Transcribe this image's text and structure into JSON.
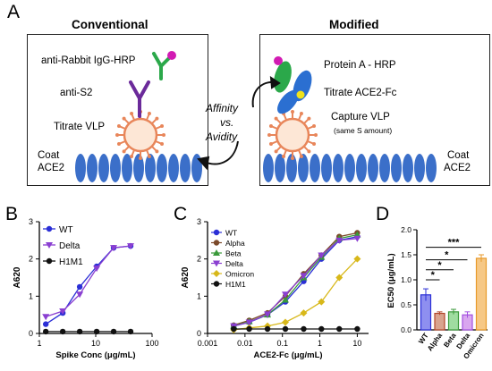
{
  "panels": {
    "a": "A",
    "b": "B",
    "c": "C",
    "d": "D"
  },
  "conventional": {
    "title": "Conventional",
    "detect_label": "anti-Rabbit IgG-HRP",
    "anti_s2_label": "anti-S2",
    "vlp_label": "Titrate VLP",
    "coat_label": "Coat",
    "coat_label2": "ACE2"
  },
  "modified": {
    "title": "Modified",
    "protein_a_label": "Protein A - HRP",
    "ace2fc_label": "Titrate ACE2-Fc",
    "capture_label": "Capture VLP",
    "capture_note": "(same S amount)",
    "coat_label": "Coat",
    "coat_label2": "ACE2"
  },
  "middle": {
    "affinity": "Affinity",
    "vs": "vs.",
    "avidity": "Avidity"
  },
  "colors": {
    "ace2_blue": "#3b6fc9",
    "wt": "#2b2fd6",
    "delta": "#8a3fd1",
    "h1m1": "#111111",
    "alpha": "#7b4a2a",
    "beta": "#3a9a3a",
    "omicron": "#d8b81a",
    "hrp_green": "#2ba84a",
    "hrp_magenta": "#d21bb3",
    "s2_purple": "#6b2a9a",
    "vlp_orange": "#e8865a"
  },
  "chart_data": [
    {
      "type": "scatter",
      "panel": "B",
      "xlabel": "Spike Conc (μg/mL)",
      "ylabel": "A620",
      "xscale": "log",
      "xlim": [
        1,
        100
      ],
      "ylim": [
        0,
        3
      ],
      "xticks": [
        "1",
        "10",
        "100"
      ],
      "yticks": [
        "0",
        "1",
        "2",
        "3"
      ],
      "legend": "top-left",
      "series": [
        {
          "name": "WT",
          "marker": "circle",
          "x": [
            1.3,
            2.6,
            5.2,
            10.4,
            20.8,
            41.6
          ],
          "y": [
            0.25,
            0.55,
            1.25,
            1.8,
            2.3,
            2.35
          ]
        },
        {
          "name": "Delta",
          "marker": "triangle-down",
          "x": [
            1.3,
            2.6,
            5.2,
            10.4,
            20.8,
            41.6
          ],
          "y": [
            0.45,
            0.6,
            1.05,
            1.75,
            2.3,
            2.35
          ]
        },
        {
          "name": "H1M1",
          "marker": "circle",
          "x": [
            1.3,
            2.6,
            5.2,
            10.4,
            20.8,
            41.6
          ],
          "y": [
            0.05,
            0.05,
            0.05,
            0.05,
            0.05,
            0.05
          ]
        }
      ]
    },
    {
      "type": "scatter",
      "panel": "C",
      "xlabel": "ACE2-Fc (μg/mL)",
      "ylabel": "A620",
      "xscale": "log",
      "xlim": [
        0.001,
        20
      ],
      "ylim": [
        0,
        3
      ],
      "xticks": [
        "0.001",
        "0.01",
        "0.1",
        "1",
        "10"
      ],
      "yticks": [
        "0",
        "1",
        "2",
        "3"
      ],
      "legend": "top-left",
      "series": [
        {
          "name": "WT",
          "marker": "circle",
          "x": [
            0.005,
            0.013,
            0.04,
            0.12,
            0.37,
            1.1,
            3.3,
            10
          ],
          "y": [
            0.2,
            0.3,
            0.5,
            0.85,
            1.4,
            2.0,
            2.5,
            2.6
          ]
        },
        {
          "name": "Alpha",
          "marker": "circle",
          "x": [
            0.005,
            0.013,
            0.04,
            0.12,
            0.37,
            1.1,
            3.3,
            10
          ],
          "y": [
            0.22,
            0.35,
            0.55,
            1.0,
            1.6,
            2.1,
            2.6,
            2.7
          ]
        },
        {
          "name": "Beta",
          "marker": "triangle-up",
          "x": [
            0.005,
            0.013,
            0.04,
            0.12,
            0.37,
            1.1,
            3.3,
            10
          ],
          "y": [
            0.2,
            0.32,
            0.5,
            0.9,
            1.5,
            2.05,
            2.55,
            2.65
          ]
        },
        {
          "name": "Delta",
          "marker": "triangle-down",
          "x": [
            0.005,
            0.013,
            0.04,
            0.12,
            0.37,
            1.1,
            3.3,
            10
          ],
          "y": [
            0.2,
            0.3,
            0.52,
            1.05,
            1.55,
            2.1,
            2.5,
            2.55
          ]
        },
        {
          "name": "Omicron",
          "marker": "diamond",
          "x": [
            0.005,
            0.013,
            0.04,
            0.12,
            0.37,
            1.1,
            3.3,
            10
          ],
          "y": [
            0.1,
            0.15,
            0.2,
            0.3,
            0.55,
            0.85,
            1.5,
            2.0
          ]
        },
        {
          "name": "H1M1",
          "marker": "circle",
          "x": [
            0.005,
            0.013,
            0.04,
            0.12,
            0.37,
            1.1,
            3.3,
            10
          ],
          "y": [
            0.12,
            0.12,
            0.12,
            0.12,
            0.12,
            0.12,
            0.12,
            0.12
          ]
        }
      ]
    },
    {
      "type": "bar",
      "panel": "D",
      "ylabel": "EC50 (μg/mL)",
      "ylim": [
        0,
        2.0
      ],
      "yticks": [
        "0.0",
        "0.5",
        "1.0",
        "1.5",
        "2.0"
      ],
      "categories": [
        "WT",
        "Alpha",
        "Beta",
        "Delta",
        "Omicron"
      ],
      "values": [
        0.7,
        0.33,
        0.36,
        0.3,
        1.43
      ],
      "errors": [
        0.12,
        0.03,
        0.05,
        0.06,
        0.07
      ],
      "significance": [
        "*",
        "*",
        "*",
        "***"
      ]
    }
  ]
}
